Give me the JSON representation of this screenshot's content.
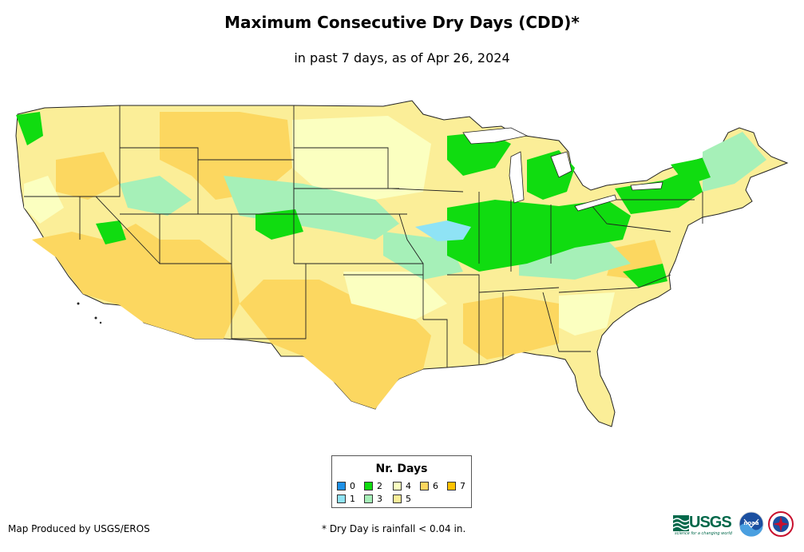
{
  "title": "Maximum Consecutive Dry Days (CDD)*",
  "subtitle": "in past 7 days, as of Apr 26, 2024",
  "legend": {
    "title": "Nr. Days",
    "items": [
      {
        "label": "0",
        "color": "#1e90e6"
      },
      {
        "label": "1",
        "color": "#8fe3f5"
      },
      {
        "label": "2",
        "color": "#10dc10"
      },
      {
        "label": "3",
        "color": "#a6f0b8"
      },
      {
        "label": "4",
        "color": "#fbffc0"
      },
      {
        "label": "5",
        "color": "#fbee98"
      },
      {
        "label": "6",
        "color": "#fcd760"
      },
      {
        "label": "7",
        "color": "#fec200"
      }
    ]
  },
  "footer": {
    "producer": "Map Produced by USGS/EROS",
    "note": "* Dry Day is rainfall < 0.04 in."
  },
  "logos": {
    "usgs_text": "USGS",
    "usgs_tagline": "science for a changing world",
    "noaa_text": "noaa"
  },
  "colors": {
    "border": "#222222",
    "water": "#ffffff"
  }
}
